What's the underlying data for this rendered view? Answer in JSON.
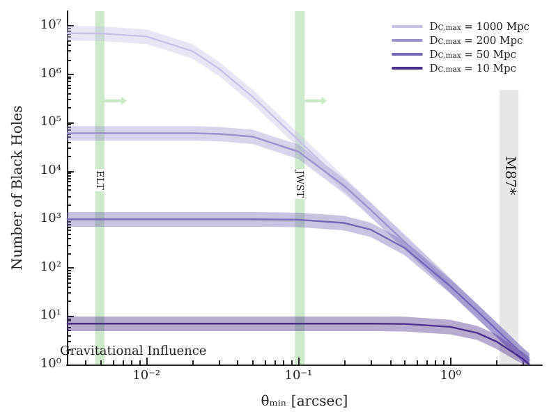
{
  "chart_data": {
    "type": "line",
    "xlabel": "θₘᵢₙ [arcsec]",
    "ylabel": "Number of Black Holes",
    "log": "xy",
    "xlim": [
      0.003,
      4
    ],
    "ylim": [
      1,
      20000000
    ],
    "xticks": [
      {
        "value": 0.01,
        "label": "10⁻²"
      },
      {
        "value": 0.1,
        "label": "10⁻¹"
      },
      {
        "value": 1,
        "label": "10⁰"
      }
    ],
    "yticks": [
      {
        "value": 1,
        "label": "10⁰"
      },
      {
        "value": 10,
        "label": "10¹"
      },
      {
        "value": 100,
        "label": "10²"
      },
      {
        "value": 1000,
        "label": "10³"
      },
      {
        "value": 10000,
        "label": "10⁴"
      },
      {
        "value": 100000,
        "label": "10⁵"
      },
      {
        "value": 1000000,
        "label": "10⁶"
      },
      {
        "value": 10000000,
        "label": "10⁷"
      }
    ],
    "x": [
      0.003,
      0.005,
      0.01,
      0.02,
      0.03,
      0.05,
      0.1,
      0.2,
      0.3,
      0.5,
      1,
      1.5,
      2,
      3,
      3.3
    ],
    "series": [
      {
        "name": "D$_{C,max}$ = 1000 Mpc",
        "color": "#c5c1e6",
        "values": [
          7000000,
          6900000,
          6000000,
          3000000,
          1300000,
          340000,
          43000,
          5400,
          1600,
          340,
          43,
          12.7,
          5.4,
          1.6,
          1.2
        ],
        "lower": [
          4900000,
          4800000,
          4200000,
          2100000,
          910000,
          240000,
          30000,
          3800,
          1120,
          240,
          30,
          8.9,
          3.8,
          1.1,
          1
        ],
        "upper": [
          9800000,
          9700000,
          8400000,
          4200000,
          1800000,
          480000,
          60000,
          7600,
          2240,
          480,
          60,
          17.8,
          7.6,
          2.2,
          1.7
        ]
      },
      {
        "name": "D$_{C,max}$ = 200 Mpc",
        "color": "#9a93d0",
        "values": [
          60000,
          60000,
          60000,
          60000,
          58000,
          51000,
          25000,
          4900,
          1550,
          340,
          43,
          12.7,
          5.4,
          1.6,
          1.2
        ],
        "lower": [
          42000,
          42000,
          42000,
          42000,
          41000,
          36000,
          17500,
          3400,
          1090,
          240,
          30,
          8.9,
          3.8,
          1.1,
          1
        ],
        "upper": [
          84000,
          84000,
          84000,
          84000,
          81000,
          71000,
          35000,
          6900,
          2170,
          480,
          60,
          17.8,
          7.6,
          2.2,
          1.7
        ]
      },
      {
        "name": "D$_{C,max}$ = 50 Mpc",
        "color": "#7566b8",
        "values": [
          1000,
          1000,
          1000,
          1000,
          1000,
          1000,
          980,
          840,
          610,
          256,
          41,
          12.6,
          5.3,
          1.6,
          1.2
        ],
        "lower": [
          700,
          700,
          700,
          700,
          700,
          700,
          690,
          590,
          430,
          180,
          29,
          8.8,
          3.7,
          1.1,
          1
        ],
        "upper": [
          1400,
          1400,
          1400,
          1400,
          1400,
          1400,
          1370,
          1180,
          850,
          360,
          57,
          17.6,
          7.4,
          2.2,
          1.7
        ]
      },
      {
        "name": "D$_{C,max}$ = 10 Mpc",
        "color": "#4a2e8e",
        "values": [
          7,
          7,
          7,
          7,
          7,
          7,
          7,
          7,
          7,
          6.9,
          6,
          4.5,
          3,
          1.3,
          1
        ],
        "lower": [
          4.9,
          4.9,
          4.9,
          4.9,
          4.9,
          4.9,
          4.9,
          4.9,
          4.9,
          4.8,
          4.2,
          3.2,
          2.1,
          1,
          1
        ],
        "upper": [
          9.8,
          9.8,
          9.8,
          9.8,
          9.8,
          9.8,
          9.8,
          9.8,
          9.8,
          9.7,
          8.4,
          6.3,
          4.2,
          1.8,
          1.4
        ]
      }
    ],
    "bands": [
      {
        "axis": "x",
        "from": 0.0046,
        "to": 0.0053,
        "label": "ELT",
        "color": "#c8e8c4"
      },
      {
        "axis": "x",
        "from": 0.095,
        "to": 0.11,
        "label": "JWST",
        "color": "#c8e8c4"
      },
      {
        "axis": "x",
        "from": 2.1,
        "to": 2.8,
        "label": "M87*",
        "color": "#e4e4e4"
      }
    ],
    "annotations": [
      "Gravitational Influence"
    ],
    "legend": "top right",
    "grid": false
  }
}
